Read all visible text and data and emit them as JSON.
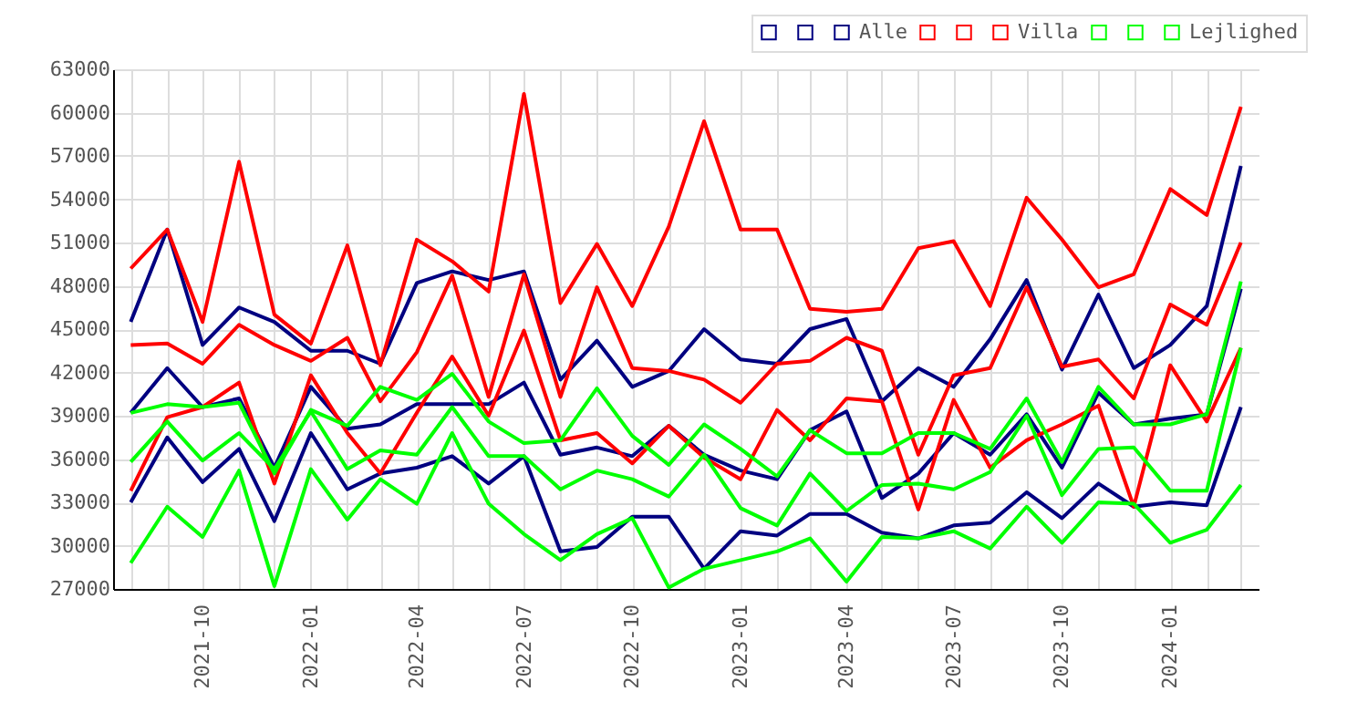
{
  "chart_data": {
    "type": "line",
    "x": [
      "2021-08",
      "2021-09",
      "2021-10",
      "2021-11",
      "2021-12",
      "2022-01",
      "2022-02",
      "2022-03",
      "2022-04",
      "2022-05",
      "2022-06",
      "2022-07",
      "2022-08",
      "2022-09",
      "2022-10",
      "2022-11",
      "2022-12",
      "2023-01",
      "2023-02",
      "2023-03",
      "2023-04",
      "2023-05",
      "2023-06",
      "2023-07",
      "2023-08",
      "2023-09",
      "2023-10",
      "2023-11",
      "2023-12",
      "2024-01",
      "2024-02",
      "2024-03"
    ],
    "series": [
      {
        "color": "#000080",
        "values": [
          45500,
          51900,
          43900,
          46500,
          45500,
          43500,
          43500,
          42600,
          48200,
          49000,
          48400,
          49000,
          41500,
          44200,
          41000,
          42100,
          45000,
          42900,
          42600,
          45000,
          45700,
          40000,
          42300,
          41000,
          44300,
          48400,
          42200,
          47400,
          42300,
          43900,
          46600,
          56300
        ]
      },
      {
        "color": "#000080",
        "values": [
          39200,
          42300,
          39600,
          40200,
          35400,
          41000,
          38100,
          38400,
          39800,
          39800,
          39800,
          41300,
          36300,
          36800,
          36200,
          38300,
          36300,
          35200,
          34600,
          38000,
          39300,
          33300,
          35000,
          37800,
          36300,
          39100,
          35400,
          40600,
          38400,
          38800,
          39100,
          47800
        ]
      },
      {
        "name": "Alle",
        "color": "#000080",
        "values": [
          33000,
          37500,
          34400,
          36700,
          31700,
          37800,
          33900,
          35000,
          35400,
          36200,
          34300,
          36200,
          29600,
          29900,
          32000,
          32000,
          28400,
          31000,
          30700,
          32200,
          32200,
          30900,
          30500,
          31400,
          31600,
          33700,
          31900,
          34300,
          32700,
          33000,
          32800,
          39600
        ]
      },
      {
        "color": "#ff0000",
        "values": [
          49200,
          51900,
          45500,
          56600,
          46000,
          44000,
          50800,
          42500,
          51200,
          49700,
          47600,
          61300,
          46800,
          50900,
          46600,
          52100,
          59400,
          51900,
          51900,
          46400,
          46200,
          46400,
          50600,
          51100,
          46600,
          54100,
          51200,
          47900,
          48800,
          54700,
          52900,
          60400
        ]
      },
      {
        "color": "#ff0000",
        "values": [
          43900,
          44000,
          42600,
          45300,
          43900,
          42800,
          44400,
          40000,
          43400,
          48700,
          40300,
          48800,
          40300,
          47900,
          42300,
          42100,
          41500,
          39900,
          42600,
          42800,
          44400,
          43500,
          36300,
          41800,
          42300,
          47900,
          42400,
          42900,
          40200,
          46700,
          45300,
          51000
        ]
      },
      {
        "name": "Villa",
        "color": "#ff0000",
        "values": [
          33800,
          38900,
          39600,
          41300,
          34300,
          41800,
          37800,
          35000,
          39200,
          43100,
          39000,
          44900,
          37300,
          37800,
          35700,
          38300,
          36100,
          34600,
          39400,
          37300,
          40200,
          40000,
          32500,
          40100,
          35400,
          37300,
          38400,
          39700,
          32700,
          42500,
          38600,
          43700
        ]
      },
      {
        "color": "#00ff00",
        "values": [
          39200,
          39800,
          39600,
          39900,
          35000,
          39400,
          38300,
          41000,
          40100,
          41900,
          38600,
          37100,
          37300,
          40900,
          37600,
          35600,
          38400,
          36700,
          34800,
          38000,
          36400,
          36400,
          37800,
          37800,
          36700,
          40200,
          35800,
          41000,
          38400,
          38400,
          39100,
          48300
        ]
      },
      {
        "color": "#00ff00",
        "values": [
          35800,
          38600,
          35900,
          37800,
          35300,
          39300,
          35300,
          36600,
          36300,
          39600,
          36200,
          36200,
          33900,
          35200,
          34600,
          33400,
          36300,
          32600,
          31400,
          35000,
          32400,
          34200,
          34300,
          33900,
          35100,
          39000,
          33500,
          36700,
          36800,
          33800,
          33800,
          43700
        ]
      },
      {
        "name": "Lejlighed",
        "color": "#00ff00",
        "values": [
          28800,
          32700,
          30600,
          35200,
          27200,
          35300,
          31800,
          34600,
          32900,
          37800,
          32900,
          30800,
          29000,
          30800,
          31900,
          27100,
          28400,
          29000,
          29600,
          30500,
          27500,
          30600,
          30500,
          31000,
          29800,
          32700,
          30200,
          33000,
          32900,
          30200,
          31100,
          34200
        ]
      }
    ],
    "xlim": [
      "2021-07-17",
      "2024-03-16"
    ],
    "xticks": [
      {
        "value": "2021-08",
        "label": null
      },
      {
        "value": "2021-09",
        "label": null
      },
      "2021-10",
      {
        "value": "2021-11",
        "label": null
      },
      {
        "value": "2021-12",
        "label": null
      },
      "2022-01",
      {
        "value": "2022-02",
        "label": null
      },
      {
        "value": "2022-03",
        "label": null
      },
      "2022-04",
      {
        "value": "2022-05",
        "label": null
      },
      {
        "value": "2022-06",
        "label": null
      },
      "2022-07",
      {
        "value": "2022-08",
        "label": null
      },
      {
        "value": "2022-09",
        "label": null
      },
      "2022-10",
      {
        "value": "2022-11",
        "label": null
      },
      {
        "value": "2022-12",
        "label": null
      },
      "2023-01",
      {
        "value": "2023-02",
        "label": null
      },
      {
        "value": "2023-03",
        "label": null
      },
      "2023-04",
      {
        "value": "2023-05",
        "label": null
      },
      {
        "value": "2023-06",
        "label": null
      },
      "2023-07",
      {
        "value": "2023-08",
        "label": null
      },
      {
        "value": "2023-09",
        "label": null
      },
      "2023-10",
      {
        "value": "2023-11",
        "label": null
      },
      {
        "value": "2023-12",
        "label": null
      },
      "2024-01",
      {
        "value": "2024-02",
        "label": null
      },
      {
        "value": "2024-03",
        "label": null
      }
    ],
    "ylim": [
      27000,
      63000
    ],
    "yticks": [
      27000,
      30000,
      33000,
      36000,
      39000,
      42000,
      45000,
      48000,
      51000,
      54000,
      57000,
      60000,
      63000
    ],
    "grid": true,
    "legend": "top right"
  }
}
